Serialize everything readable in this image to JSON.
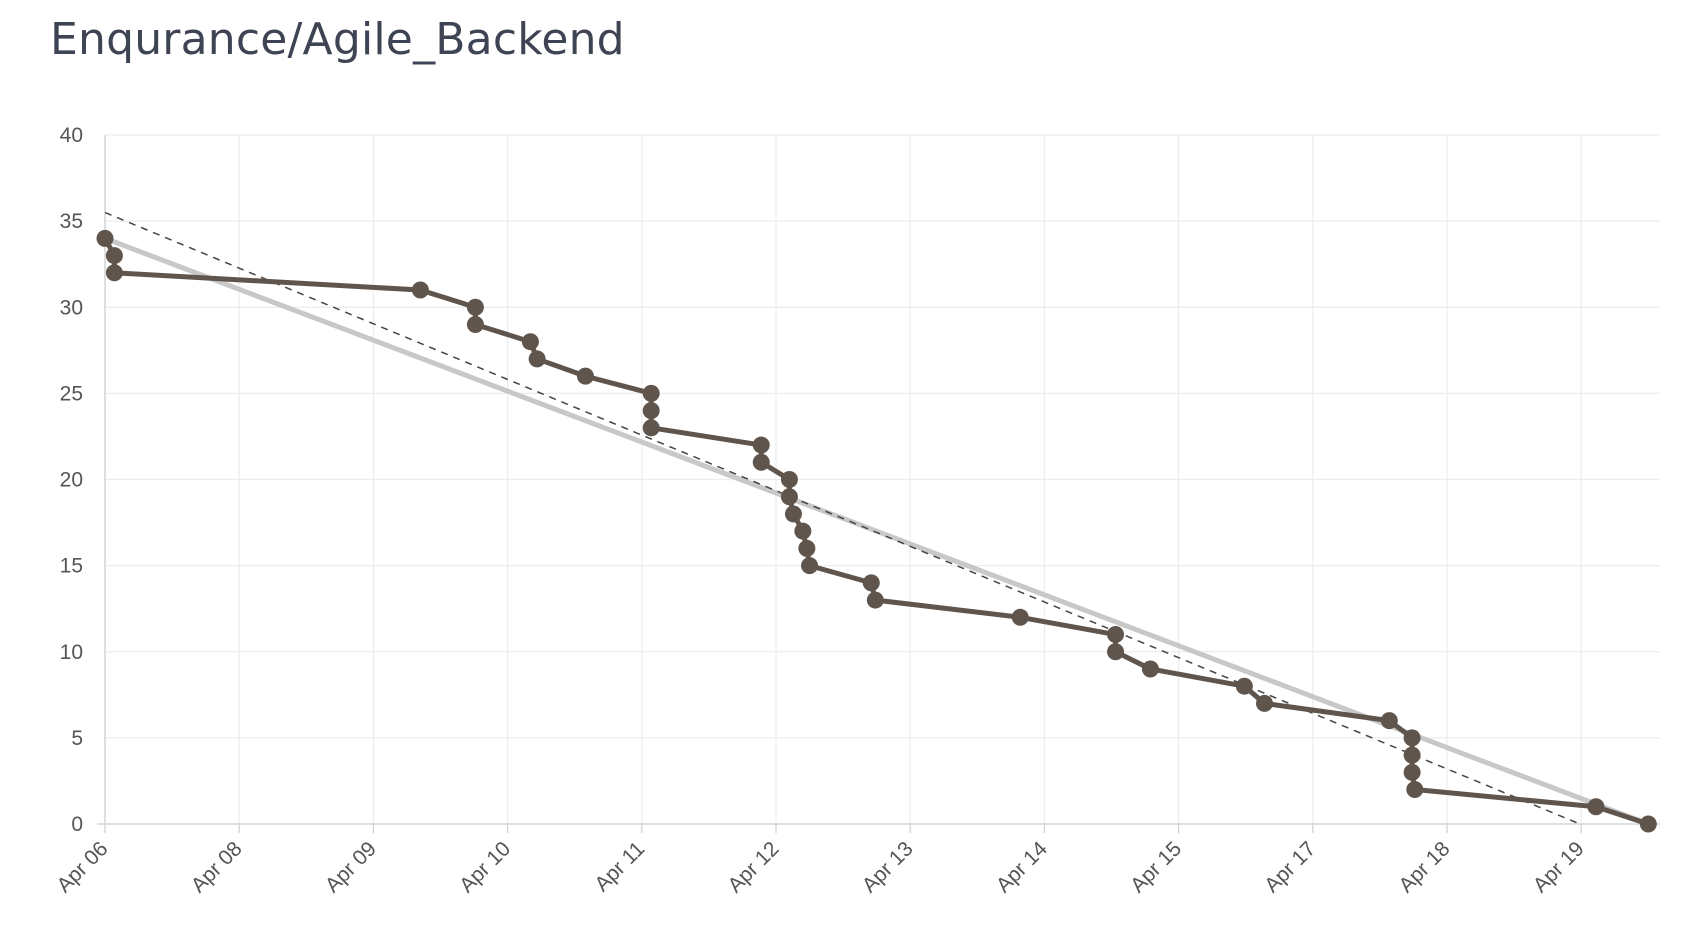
{
  "page": {
    "title": "Enqurance/Agile_Backend"
  },
  "chart_data": {
    "type": "line",
    "title": "Enqurance/Agile_Backend",
    "xlabel": "",
    "ylabel": "",
    "ylim": [
      0,
      40
    ],
    "y_ticks": [
      "0",
      "5",
      "10",
      "15",
      "20",
      "25",
      "30",
      "35",
      "40"
    ],
    "x_ticks": [
      "Apr 06",
      "Apr 08",
      "Apr 09",
      "Apr 10",
      "Apr 11",
      "Apr 12",
      "Apr 13",
      "Apr 14",
      "Apr 15",
      "Apr 17",
      "Apr 18",
      "Apr 19"
    ],
    "grid": true,
    "legend": "none",
    "colors": {
      "actual": "#5f554c",
      "ideal": "#c8c8c8",
      "trend": "#444444",
      "grid": "#ececec"
    },
    "series": [
      {
        "role": "actual",
        "points": [
          [
            "Apr 06",
            34
          ],
          [
            "Apr 06",
            33
          ],
          [
            "Apr 06",
            32
          ],
          [
            "Apr 09",
            31
          ],
          [
            "Apr 09",
            30
          ],
          [
            "Apr 09",
            29
          ],
          [
            "Apr 10",
            28
          ],
          [
            "Apr 10",
            27
          ],
          [
            "Apr 10",
            26
          ],
          [
            "Apr 11",
            25
          ],
          [
            "Apr 11",
            24
          ],
          [
            "Apr 11",
            23
          ],
          [
            "Apr 11",
            22
          ],
          [
            "Apr 11",
            21
          ],
          [
            "Apr 12",
            20
          ],
          [
            "Apr 12",
            19
          ],
          [
            "Apr 12",
            18
          ],
          [
            "Apr 12",
            17
          ],
          [
            "Apr 12",
            16
          ],
          [
            "Apr 12",
            15
          ],
          [
            "Apr 12",
            14
          ],
          [
            "Apr 12",
            13
          ],
          [
            "Apr 13",
            12
          ],
          [
            "Apr 14",
            11
          ],
          [
            "Apr 14",
            10
          ],
          [
            "Apr 14",
            9
          ],
          [
            "Apr 15",
            8
          ],
          [
            "Apr 15",
            7
          ],
          [
            "Apr 17",
            6
          ],
          [
            "Apr 17",
            5
          ],
          [
            "Apr 17",
            4
          ],
          [
            "Apr 17",
            3
          ],
          [
            "Apr 17",
            2
          ],
          [
            "Apr 19",
            1
          ],
          [
            "Apr 19",
            0
          ]
        ],
        "x_index": [
          0.0,
          0.07,
          0.07,
          2.35,
          2.76,
          2.76,
          3.17,
          3.22,
          3.58,
          4.07,
          4.07,
          4.07,
          4.89,
          4.89,
          5.1,
          5.1,
          5.13,
          5.2,
          5.23,
          5.25,
          5.71,
          5.74,
          6.82,
          7.53,
          7.53,
          7.79,
          8.49,
          8.64,
          9.57,
          9.74,
          9.74,
          9.74,
          9.76,
          11.11,
          11.5
        ]
      },
      {
        "role": "ideal",
        "x_index": [
          0.0,
          11.5
        ],
        "values": [
          34,
          0
        ]
      },
      {
        "role": "trend",
        "x_index": [
          0.0,
          10.99
        ],
        "values": [
          35.5,
          0
        ]
      }
    ]
  }
}
